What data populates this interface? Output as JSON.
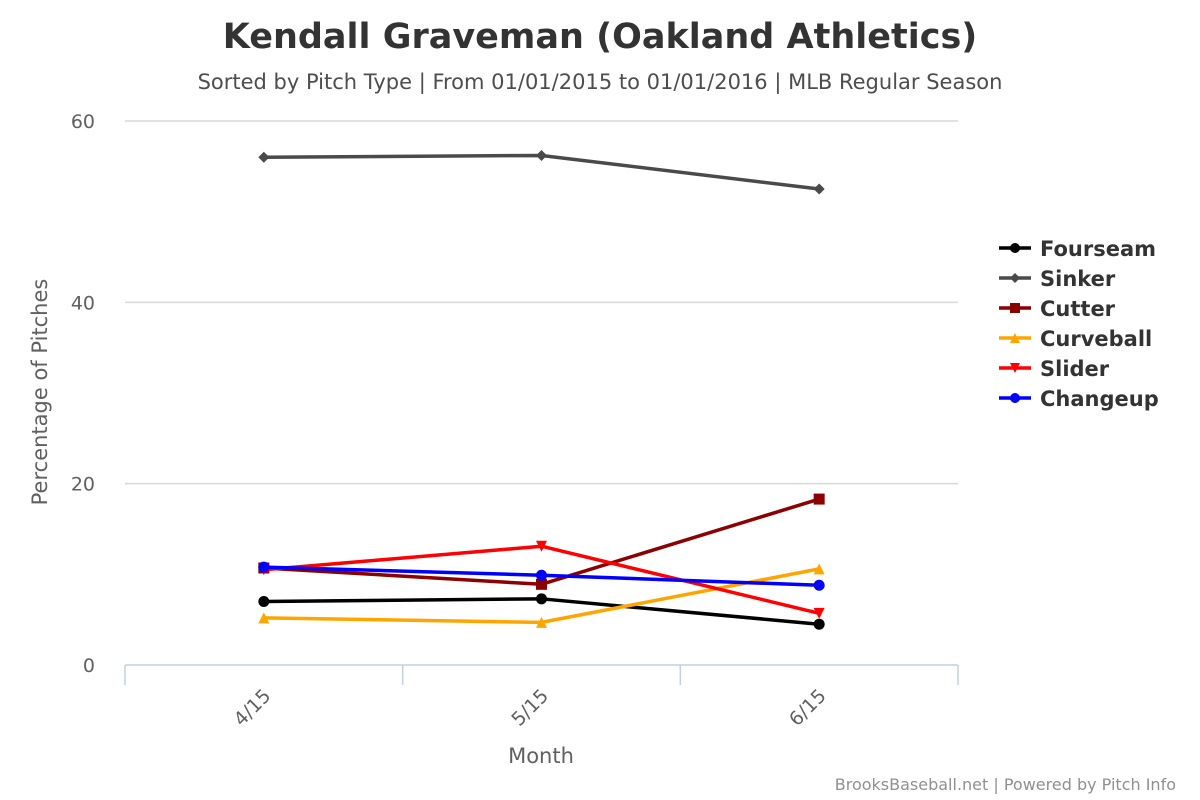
{
  "chart_data": {
    "type": "line",
    "title": "Kendall Graveman (Oakland Athletics)",
    "subtitle": "Sorted by Pitch Type | From 01/01/2015 to 01/01/2016 | MLB Regular Season",
    "xlabel": "Month",
    "ylabel": "Percentage of Pitches",
    "categories": [
      "4/15",
      "5/15",
      "6/15"
    ],
    "ylim": [
      0,
      60
    ],
    "yticks": [
      0,
      20,
      40,
      60
    ],
    "grid": true,
    "legend_position": "right",
    "series": [
      {
        "name": "Fourseam",
        "color": "#000000",
        "marker": "circle",
        "values": [
          7.0,
          7.3,
          4.5
        ]
      },
      {
        "name": "Sinker",
        "color": "#4a4a4a",
        "marker": "diamond",
        "values": [
          56.0,
          56.2,
          52.5
        ]
      },
      {
        "name": "Cutter",
        "color": "#8b0000",
        "marker": "square",
        "values": [
          10.7,
          8.9,
          18.3
        ]
      },
      {
        "name": "Curveball",
        "color": "#ffa500",
        "marker": "triangle",
        "values": [
          5.2,
          4.7,
          10.6
        ]
      },
      {
        "name": "Slider",
        "color": "#ff0000",
        "marker": "triangle-down",
        "values": [
          10.5,
          13.1,
          5.7
        ]
      },
      {
        "name": "Changeup",
        "color": "#0000ff",
        "marker": "circle",
        "values": [
          10.8,
          9.9,
          8.8
        ]
      }
    ]
  },
  "credits": "BrooksBaseball.net | Powered by Pitch Info"
}
